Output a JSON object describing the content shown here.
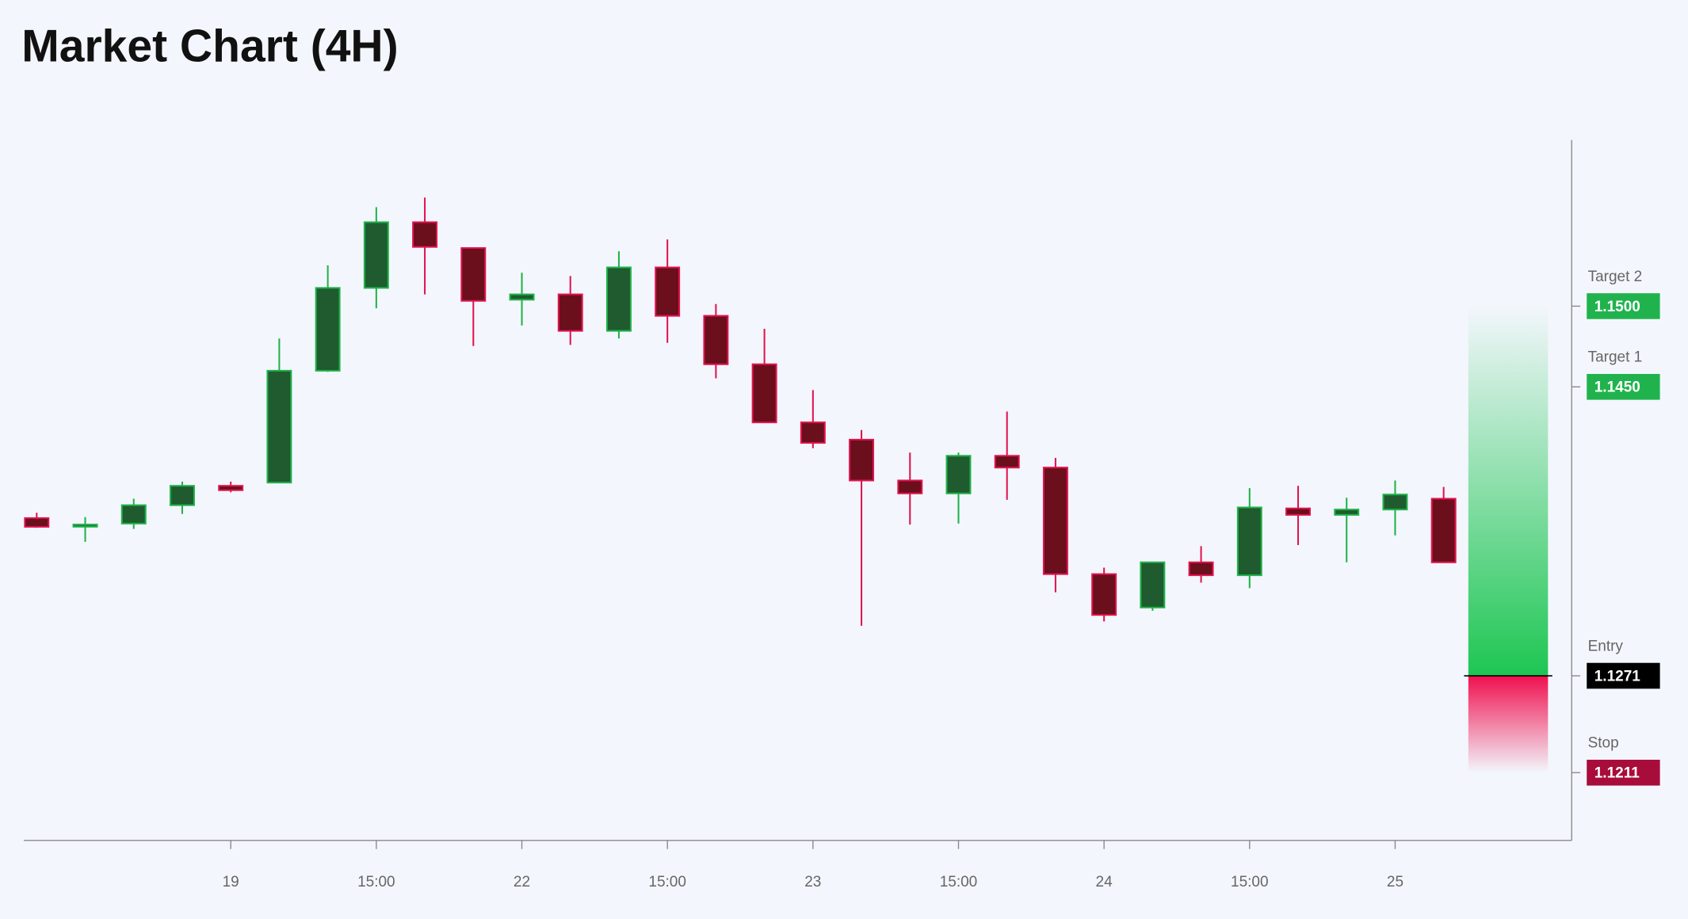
{
  "chart_data": {
    "type": "candlestick",
    "title": "Market Chart (4H)",
    "categories": [
      null,
      null,
      null,
      null,
      "19",
      null,
      null,
      "15:00",
      null,
      null,
      "22",
      null,
      null,
      "15:00",
      null,
      null,
      "23",
      null,
      null,
      "15:00",
      null,
      null,
      "24",
      null,
      null,
      "15:00",
      null,
      null,
      "25",
      null
    ],
    "open": [
      1.13687,
      1.1364,
      1.13653,
      1.13767,
      1.13887,
      1.13907,
      1.146,
      1.15113,
      1.1552,
      1.1536,
      1.1504,
      1.15073,
      1.14847,
      1.1524,
      1.1494,
      1.1464,
      1.1428,
      1.14173,
      1.1392,
      1.1384,
      1.14073,
      1.14,
      1.1334,
      1.13133,
      1.13413,
      1.13333,
      1.13747,
      1.13707,
      1.1374,
      1.13807
    ],
    "high": [
      1.1372,
      1.13693,
      1.13807,
      1.13913,
      1.13913,
      1.148,
      1.15253,
      1.15613,
      1.15673,
      1.1536,
      1.15207,
      1.15187,
      1.1534,
      1.15413,
      1.15013,
      1.1486,
      1.1448,
      1.14233,
      1.14093,
      1.14093,
      1.14347,
      1.1406,
      1.1338,
      1.13413,
      1.13513,
      1.13873,
      1.13887,
      1.13813,
      1.1392,
      1.1388
    ],
    "low": [
      1.13627,
      1.1354,
      1.1362,
      1.13713,
      1.13847,
      1.13907,
      1.14593,
      1.14987,
      1.15073,
      1.14753,
      1.1488,
      1.1476,
      1.148,
      1.14773,
      1.14553,
      1.1428,
      1.1412,
      1.1302,
      1.13647,
      1.13653,
      1.138,
      1.13227,
      1.13047,
      1.13113,
      1.13287,
      1.13253,
      1.1352,
      1.13413,
      1.1358,
      1.13413
    ],
    "close": [
      1.13633,
      1.13647,
      1.13767,
      1.13887,
      1.1386,
      1.146,
      1.15113,
      1.1552,
      1.15367,
      1.15033,
      1.15073,
      1.14847,
      1.1524,
      1.1494,
      1.1464,
      1.1428,
      1.14153,
      1.1392,
      1.1384,
      1.14073,
      1.14,
      1.1334,
      1.13087,
      1.13413,
      1.13333,
      1.13753,
      1.13707,
      1.1374,
      1.13833,
      1.13413
    ],
    "up_color": "#1fb24a",
    "up_fill": "#1f5b2f",
    "down_color": "#e0134f",
    "down_fill": "#6a0f1b",
    "ylim": [
      1.1169,
      1.1603
    ],
    "levels": [
      {
        "name": "Target 2",
        "value": 1.15,
        "label": "1.1500",
        "color": "#20b34d"
      },
      {
        "name": "Target 1",
        "value": 1.145,
        "label": "1.1450",
        "color": "#20b34d"
      },
      {
        "name": "Entry",
        "value": 1.1271,
        "label": "1.1271",
        "color": "#000000"
      },
      {
        "name": "Stop",
        "value": 1.1211,
        "label": "1.1211",
        "color": "#a80c3a"
      }
    ]
  }
}
